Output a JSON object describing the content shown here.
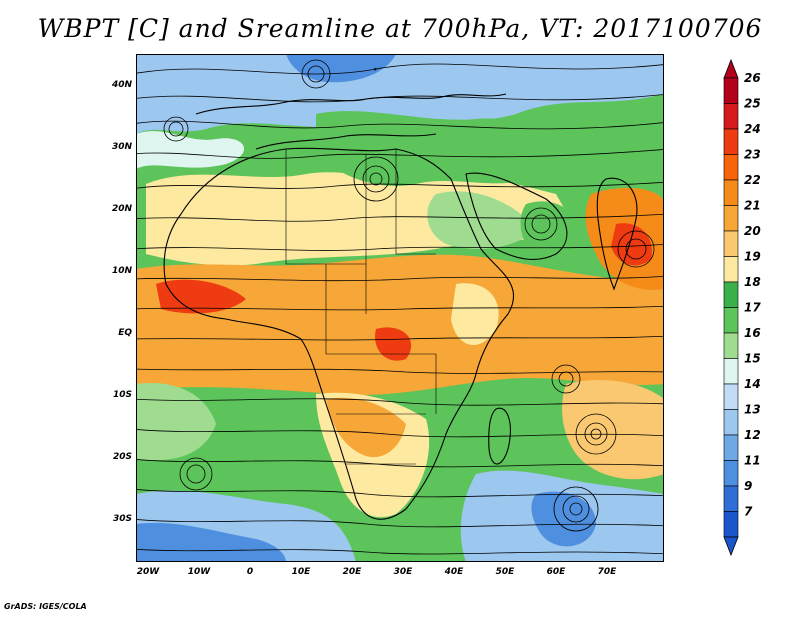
{
  "title": "WBPT [C] and Sreamline at 700hPa, VT: 2017100706",
  "footer": "GrADS: IGES/COLA",
  "map": {
    "lat_labels": [
      "40N",
      "30N",
      "20N",
      "10N",
      "EQ",
      "10S",
      "20S",
      "30S"
    ],
    "lon_labels": [
      "20W",
      "10W",
      "0",
      "10E",
      "20E",
      "30E",
      "40E",
      "50E",
      "60E",
      "70E"
    ]
  },
  "colorbar": {
    "levels": [
      "26",
      "25",
      "24",
      "23",
      "22",
      "21",
      "20",
      "19",
      "18",
      "17",
      "16",
      "15",
      "14",
      "13",
      "12",
      "11",
      "9",
      "7"
    ],
    "colors": [
      "#b3001b",
      "#d7191c",
      "#ee3b12",
      "#f7640a",
      "#f58c1a",
      "#f7a638",
      "#f9c870",
      "#fde9a0",
      "#3cb04a",
      "#5cc45a",
      "#9fdc8f",
      "#dff5f0",
      "#c1dcf4",
      "#9cc7ee",
      "#6ea9e5",
      "#4f8fdf",
      "#2e6ed6",
      "#1a55cc"
    ]
  },
  "fields": {
    "colors": {
      "cool": "#4f8fdf",
      "light_blue": "#9cc7ee",
      "pale": "#dff5f0",
      "green": "#5cc45a",
      "light_green": "#9fdc8f",
      "yellow": "#fde9a0",
      "orange": "#f7a638",
      "red_orange": "#ee3b12"
    }
  }
}
